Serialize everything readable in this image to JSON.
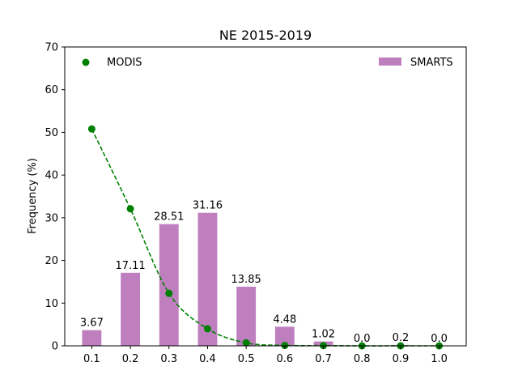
{
  "chart_data": {
    "type": "bar",
    "title": "NE 2015-2019",
    "xlabel": "",
    "ylabel": "Frequency (%)",
    "ylim": [
      0,
      70
    ],
    "yticks": [
      0,
      10,
      20,
      30,
      40,
      50,
      60,
      70
    ],
    "xlim": [
      0.03,
      1.07
    ],
    "categories": [
      "0.1",
      "0.2",
      "0.3",
      "0.4",
      "0.5",
      "0.6",
      "0.7",
      "0.8",
      "0.9",
      "1.0"
    ],
    "x": [
      0.1,
      0.2,
      0.3,
      0.4,
      0.5,
      0.6,
      0.7,
      0.8,
      0.9,
      1.0
    ],
    "series": [
      {
        "name": "SMARTS",
        "kind": "bar",
        "color": "#bf7fbf",
        "values": [
          3.67,
          17.11,
          28.51,
          31.16,
          13.85,
          4.48,
          1.02,
          0.0,
          0.2,
          0.0
        ],
        "labels": [
          "3.67",
          "17.11",
          "28.51",
          "31.16",
          "13.85",
          "4.48",
          "1.02",
          "0.0",
          "0.2",
          "0.0"
        ]
      },
      {
        "name": "MODIS",
        "kind": "scatter",
        "color": "#008000",
        "values": [
          50.8,
          32.1,
          12.3,
          4.0,
          0.7,
          0.1,
          0.05,
          0.0,
          0.0,
          0.0
        ]
      }
    ],
    "fit_line": {
      "style": "dashed",
      "color": "#008000"
    },
    "legends": [
      {
        "series": "MODIS",
        "position": "top-left"
      },
      {
        "series": "SMARTS",
        "position": "top-right"
      }
    ]
  }
}
